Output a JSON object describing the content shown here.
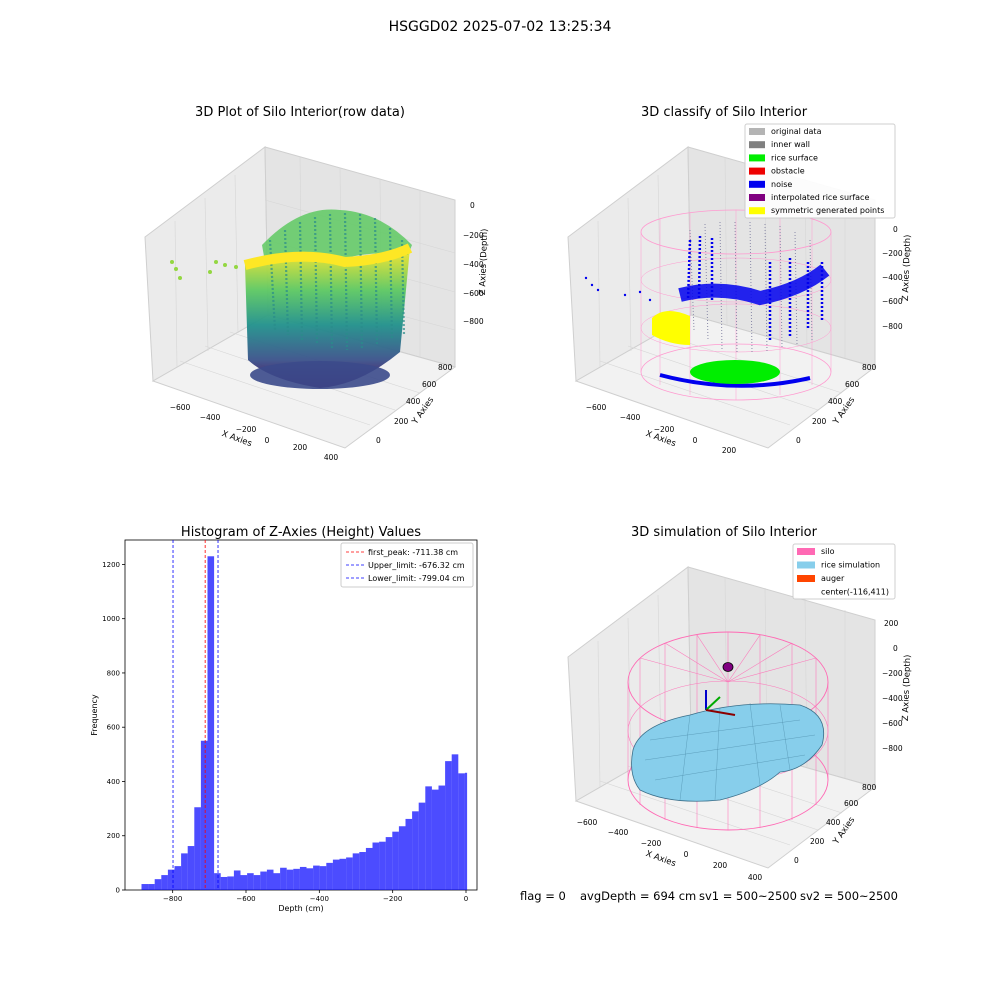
{
  "suptitle": "HSGGD02 2025-07-02 13:25:34",
  "panels": {
    "p1": {
      "title": "3D Plot of Silo Interior(row data)",
      "xlabel": "X Axies",
      "ylabel": "Y Axies",
      "zlabel": "Z Axies (Depth)",
      "xticks": [
        "−600",
        "−400",
        "−200",
        "0",
        "200",
        "400"
      ],
      "yticks": [
        "0",
        "200",
        "400",
        "600",
        "800"
      ],
      "zticks": [
        "0",
        "−200",
        "−400",
        "−600",
        "−800"
      ]
    },
    "p2": {
      "title": "3D classify of Silo Interior",
      "xlabel": "X Axies",
      "ylabel": "Y Axies",
      "zlabel": "Z Axies (Depth)",
      "xticks": [
        "−600",
        "−400",
        "−200",
        "0",
        "200"
      ],
      "yticks": [
        "0",
        "200",
        "400",
        "600",
        "800"
      ],
      "zticks": [
        "0",
        "−200",
        "−400",
        "−600",
        "−800"
      ],
      "legend": [
        {
          "label": "original data",
          "color": "#b4b4b4"
        },
        {
          "label": "inner wall",
          "color": "#808080"
        },
        {
          "label": "rice surface",
          "color": "#00ee00"
        },
        {
          "label": "obstacle",
          "color": "#ee0000"
        },
        {
          "label": "noise",
          "color": "#0000ee"
        },
        {
          "label": "interpolated rice surface",
          "color": "#800080"
        },
        {
          "label": "symmetric generated points",
          "color": "#ffff00"
        }
      ]
    },
    "p4": {
      "title": "3D simulation of Silo Interior",
      "xlabel": "X Axies",
      "ylabel": "Y Axies",
      "zlabel": "Z Axies (Depth)",
      "xticks": [
        "−600",
        "−400",
        "−200",
        "0",
        "200",
        "400"
      ],
      "yticks": [
        "0",
        "200",
        "400",
        "600",
        "800"
      ],
      "zticks": [
        "200",
        "0",
        "−200",
        "−400",
        "−600",
        "−800"
      ],
      "legend": [
        {
          "label": "silo",
          "color": "#ff69b4"
        },
        {
          "label": "rice simulation",
          "color": "#87ceeb"
        },
        {
          "label": "auger",
          "color": "#ff4500"
        },
        {
          "label": "center(-116,411)",
          "color": ""
        }
      ]
    }
  },
  "status": {
    "flag": "flag = 0",
    "avgDepth": "avgDepth = 694 cm",
    "sv1": "sv1 = 500~2500",
    "sv2": "sv2 = 500~2500"
  },
  "chart_data": [
    {
      "type": "histogram",
      "title": "Histogram of Z-Axies (Height) Values",
      "xlabel": "Depth (cm)",
      "ylabel": "Frequency",
      "color": "#0000ff",
      "xlim": [
        -930,
        30
      ],
      "ylim": [
        0,
        1290
      ],
      "xticks": [
        -800,
        -600,
        -400,
        -200,
        0
      ],
      "yticks": [
        0,
        200,
        400,
        600,
        800,
        1000,
        1200
      ],
      "bins": [
        {
          "x0": -885,
          "x1": -867,
          "count": 22
        },
        {
          "x0": -867,
          "x1": -849,
          "count": 22
        },
        {
          "x0": -849,
          "x1": -831,
          "count": 40
        },
        {
          "x0": -831,
          "x1": -813,
          "count": 55
        },
        {
          "x0": -813,
          "x1": -795,
          "count": 75
        },
        {
          "x0": -795,
          "x1": -777,
          "count": 88
        },
        {
          "x0": -777,
          "x1": -759,
          "count": 135
        },
        {
          "x0": -759,
          "x1": -741,
          "count": 162
        },
        {
          "x0": -741,
          "x1": -723,
          "count": 305
        },
        {
          "x0": -723,
          "x1": -705,
          "count": 550
        },
        {
          "x0": -705,
          "x1": -687,
          "count": 1230
        },
        {
          "x0": -687,
          "x1": -669,
          "count": 62
        },
        {
          "x0": -669,
          "x1": -651,
          "count": 48
        },
        {
          "x0": -651,
          "x1": -633,
          "count": 50
        },
        {
          "x0": -633,
          "x1": -615,
          "count": 72
        },
        {
          "x0": -615,
          "x1": -597,
          "count": 55
        },
        {
          "x0": -597,
          "x1": -579,
          "count": 62
        },
        {
          "x0": -579,
          "x1": -561,
          "count": 55
        },
        {
          "x0": -561,
          "x1": -543,
          "count": 68
        },
        {
          "x0": -543,
          "x1": -525,
          "count": 75
        },
        {
          "x0": -525,
          "x1": -507,
          "count": 62
        },
        {
          "x0": -507,
          "x1": -489,
          "count": 82
        },
        {
          "x0": -489,
          "x1": -471,
          "count": 75
        },
        {
          "x0": -471,
          "x1": -453,
          "count": 78
        },
        {
          "x0": -453,
          "x1": -435,
          "count": 85
        },
        {
          "x0": -435,
          "x1": -417,
          "count": 80
        },
        {
          "x0": -417,
          "x1": -399,
          "count": 90
        },
        {
          "x0": -399,
          "x1": -381,
          "count": 88
        },
        {
          "x0": -381,
          "x1": -363,
          "count": 100
        },
        {
          "x0": -363,
          "x1": -345,
          "count": 112
        },
        {
          "x0": -345,
          "x1": -327,
          "count": 115
        },
        {
          "x0": -327,
          "x1": -309,
          "count": 120
        },
        {
          "x0": -309,
          "x1": -291,
          "count": 135
        },
        {
          "x0": -291,
          "x1": -273,
          "count": 140
        },
        {
          "x0": -273,
          "x1": -255,
          "count": 155
        },
        {
          "x0": -255,
          "x1": -237,
          "count": 175
        },
        {
          "x0": -237,
          "x1": -219,
          "count": 178
        },
        {
          "x0": -219,
          "x1": -201,
          "count": 195
        },
        {
          "x0": -201,
          "x1": -183,
          "count": 215
        },
        {
          "x0": -183,
          "x1": -165,
          "count": 235
        },
        {
          "x0": -165,
          "x1": -147,
          "count": 262
        },
        {
          "x0": -147,
          "x1": -129,
          "count": 290
        },
        {
          "x0": -129,
          "x1": -111,
          "count": 322
        },
        {
          "x0": -111,
          "x1": -93,
          "count": 382
        },
        {
          "x0": -93,
          "x1": -75,
          "count": 370
        },
        {
          "x0": -75,
          "x1": -57,
          "count": 385
        },
        {
          "x0": -57,
          "x1": -39,
          "count": 475
        },
        {
          "x0": -39,
          "x1": -21,
          "count": 500
        },
        {
          "x0": -21,
          "x1": -3,
          "count": 430
        },
        {
          "x0": -3,
          "x1": 3,
          "count": 432
        }
      ],
      "vlines": [
        {
          "x": -711.38,
          "color": "#ff0000",
          "label": "first_peak: -711.38 cm"
        },
        {
          "x": -676.32,
          "color": "#0000ff",
          "label": "Upper_limit: -676.32 cm"
        },
        {
          "x": -799.04,
          "color": "#0000ff",
          "label": "Lower_limit: -799.04 cm"
        }
      ],
      "legend_position": "top-right"
    }
  ]
}
